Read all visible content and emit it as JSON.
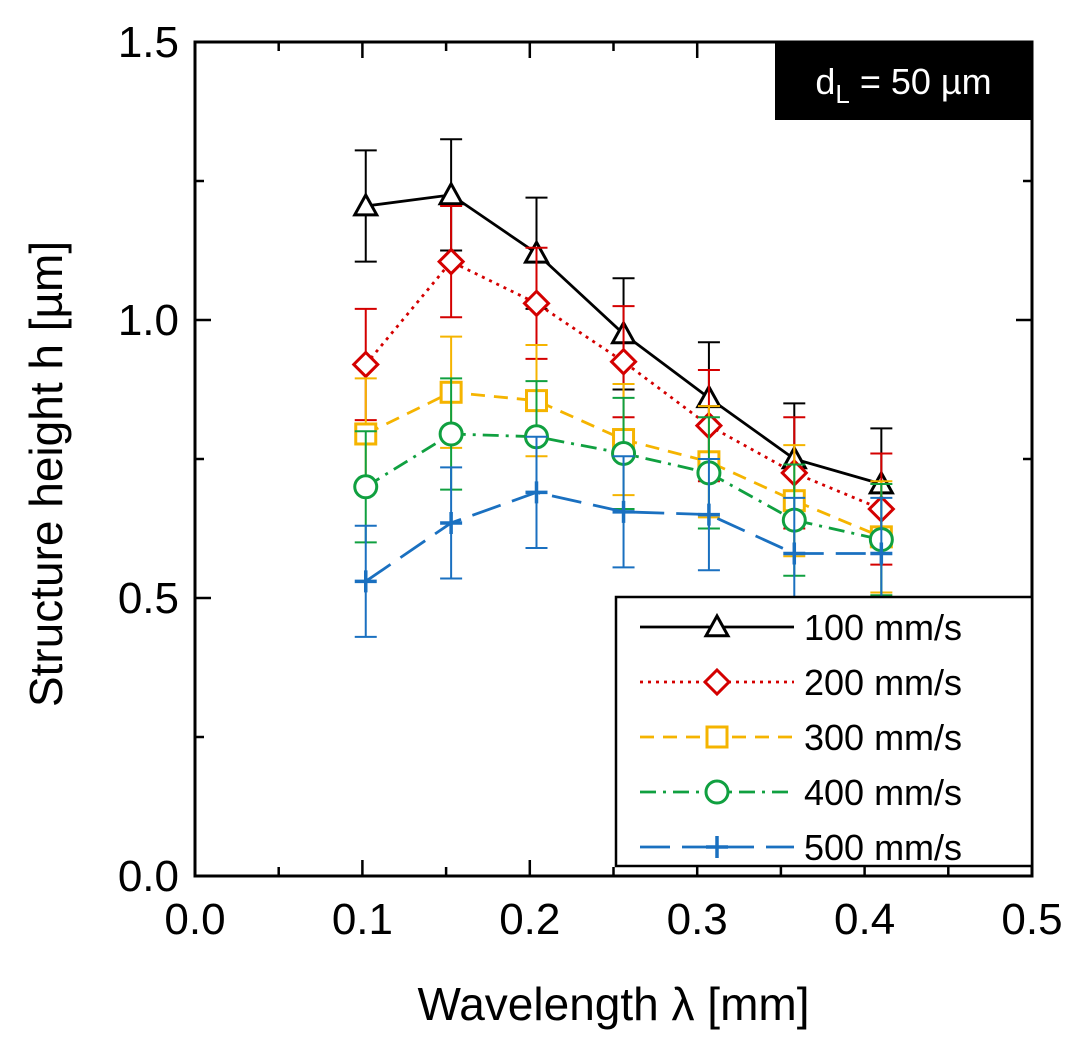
{
  "chart_data": {
    "type": "line",
    "xlabel": "Wavelength λ [mm]",
    "ylabel": "Structure height h [µm]",
    "xlim": [
      0.0,
      0.5
    ],
    "ylim": [
      0.0,
      1.5
    ],
    "x_ticks": [
      "0.0",
      "0.1",
      "0.2",
      "0.3",
      "0.4",
      "0.5"
    ],
    "y_ticks": [
      "0.0",
      "0.5",
      "1.0",
      "1.5"
    ],
    "x_minor_ticks": [
      0.05,
      0.15,
      0.25,
      0.35,
      0.45
    ],
    "y_minor_ticks": [
      0.25,
      0.75,
      1.25
    ],
    "annotation": {
      "main": "d",
      "sub": "L",
      "rest": " = 50 µm",
      "placement": "top-right"
    },
    "legend_placement": "bottom-right",
    "x": [
      0.102,
      0.153,
      0.204,
      0.256,
      0.307,
      0.358,
      0.41
    ],
    "series": [
      {
        "name": "100 mm/s",
        "color": "#000000",
        "marker": "triangle",
        "dash": "",
        "values": [
          1.205,
          1.225,
          1.12,
          0.975,
          0.86,
          0.75,
          0.705
        ],
        "errors": [
          0.1,
          0.1,
          0.1,
          0.1,
          0.1,
          0.1,
          0.1
        ]
      },
      {
        "name": "200 mm/s",
        "color": "#d40000",
        "marker": "diamond",
        "dash": "3 5",
        "values": [
          0.92,
          1.105,
          1.03,
          0.925,
          0.81,
          0.725,
          0.66
        ],
        "errors": [
          0.1,
          0.1,
          0.1,
          0.1,
          0.1,
          0.1,
          0.1
        ]
      },
      {
        "name": "300 mm/s",
        "color": "#f5b400",
        "marker": "square",
        "dash": "14 9",
        "values": [
          0.795,
          0.87,
          0.855,
          0.785,
          0.745,
          0.675,
          0.61
        ],
        "errors": [
          0.1,
          0.1,
          0.1,
          0.1,
          0.1,
          0.1,
          0.1
        ]
      },
      {
        "name": "400 mm/s",
        "color": "#10a040",
        "marker": "circle",
        "dash": "16 7 3 7",
        "values": [
          0.7,
          0.795,
          0.79,
          0.76,
          0.725,
          0.64,
          0.605
        ],
        "errors": [
          0.1,
          0.1,
          0.1,
          0.1,
          0.1,
          0.1,
          0.1
        ]
      },
      {
        "name": "500 mm/s",
        "color": "#1a70c0",
        "marker": "plus",
        "dash": "30 12",
        "values": [
          0.53,
          0.635,
          0.69,
          0.655,
          0.65,
          0.58,
          0.58
        ],
        "errors": [
          0.1,
          0.1,
          0.1,
          0.1,
          0.1,
          0.1,
          0.1
        ]
      }
    ]
  }
}
